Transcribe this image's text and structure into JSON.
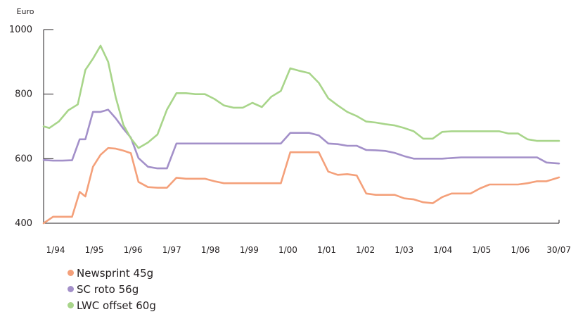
{
  "chart_data": {
    "type": "line",
    "unit_label": "Euro",
    "ylim": [
      400,
      1000
    ],
    "y_ticks": [
      "1000",
      "800",
      "600",
      "400"
    ],
    "y_tick_values": [
      1000,
      800,
      600,
      400
    ],
    "x_tick_labels": [
      "1/94",
      "1/95",
      "1/96",
      "1/97",
      "1/98",
      "1/99",
      "1/00",
      "1/01",
      "1/02",
      "1/03",
      "1/04",
      "1/05",
      "1/06",
      "30/07"
    ],
    "x_range": [
      1994.0,
      2007.58
    ],
    "grid": false,
    "legend_position": "bottom-left",
    "series": [
      {
        "name": "Newsprint 45g",
        "color": "#f4a07a",
        "x": [
          1994.0,
          1994.25,
          1994.5,
          1994.75,
          1994.95,
          1995.1,
          1995.3,
          1995.5,
          1995.7,
          1995.9,
          1996.1,
          1996.3,
          1996.5,
          1996.75,
          1997.0,
          1997.25,
          1997.5,
          1997.75,
          1998.0,
          1998.25,
          1998.5,
          1998.75,
          1999.0,
          1999.25,
          1999.5,
          1999.75,
          2000.0,
          2000.25,
          2000.5,
          2000.75,
          2001.0,
          2001.25,
          2001.5,
          2001.75,
          2002.0,
          2002.25,
          2002.5,
          2002.75,
          2003.0,
          2003.25,
          2003.5,
          2003.75,
          2004.0,
          2004.25,
          2004.5,
          2004.75,
          2005.0,
          2005.25,
          2005.5,
          2005.75,
          2006.0,
          2006.25,
          2006.5,
          2006.75,
          2007.0,
          2007.25,
          2007.58
        ],
        "values": [
          400,
          420,
          420,
          420,
          497,
          483,
          575,
          612,
          633,
          631,
          625,
          617,
          528,
          512,
          510,
          510,
          541,
          538,
          538,
          538,
          530,
          524,
          524,
          524,
          524,
          524,
          524,
          524,
          620,
          620,
          620,
          620,
          560,
          550,
          552,
          548,
          492,
          488,
          488,
          488,
          477,
          474,
          465,
          462,
          481,
          492,
          492,
          492,
          508,
          520,
          520,
          520,
          520,
          524,
          530,
          530,
          542
        ]
      },
      {
        "name": "SC roto 56g",
        "color": "#a390c9",
        "x": [
          1994.0,
          1994.25,
          1994.5,
          1994.75,
          1994.95,
          1995.1,
          1995.3,
          1995.5,
          1995.7,
          1995.9,
          1996.1,
          1996.3,
          1996.5,
          1996.75,
          1997.0,
          1997.25,
          1997.5,
          1997.75,
          1998.0,
          1998.25,
          1998.5,
          1998.75,
          1999.0,
          1999.25,
          1999.5,
          1999.75,
          2000.0,
          2000.25,
          2000.5,
          2000.75,
          2001.0,
          2001.25,
          2001.5,
          2001.75,
          2002.0,
          2002.25,
          2002.5,
          2002.75,
          2003.0,
          2003.25,
          2003.5,
          2003.75,
          2004.0,
          2004.25,
          2004.5,
          2004.75,
          2005.0,
          2005.25,
          2005.5,
          2005.75,
          2006.0,
          2006.25,
          2006.5,
          2006.75,
          2007.0,
          2007.25,
          2007.58
        ],
        "values": [
          596,
          594,
          594,
          595,
          660,
          660,
          745,
          745,
          752,
          725,
          693,
          665,
          602,
          575,
          570,
          570,
          647,
          647,
          647,
          647,
          647,
          647,
          647,
          647,
          647,
          647,
          647,
          647,
          680,
          680,
          680,
          672,
          647,
          645,
          640,
          640,
          627,
          626,
          624,
          618,
          608,
          600,
          600,
          600,
          600,
          602,
          604,
          604,
          604,
          604,
          604,
          604,
          604,
          604,
          604,
          588,
          585
        ]
      },
      {
        "name": "LWC offset 60g",
        "color": "#a8d58a",
        "x": [
          1994.0,
          1994.15,
          1994.4,
          1994.65,
          1994.9,
          1995.1,
          1995.3,
          1995.5,
          1995.7,
          1995.9,
          1996.1,
          1996.3,
          1996.5,
          1996.75,
          1997.0,
          1997.25,
          1997.5,
          1997.75,
          1998.0,
          1998.25,
          1998.5,
          1998.75,
          1999.0,
          1999.25,
          1999.5,
          1999.75,
          2000.0,
          2000.25,
          2000.5,
          2000.75,
          2001.0,
          2001.25,
          2001.5,
          2001.75,
          2002.0,
          2002.25,
          2002.5,
          2002.75,
          2003.0,
          2003.25,
          2003.5,
          2003.75,
          2004.0,
          2004.25,
          2004.5,
          2004.75,
          2005.0,
          2005.25,
          2005.5,
          2005.75,
          2006.0,
          2006.25,
          2006.5,
          2006.75,
          2007.0,
          2007.25,
          2007.58
        ],
        "values": [
          700,
          695,
          715,
          750,
          768,
          875,
          910,
          950,
          900,
          790,
          705,
          663,
          633,
          650,
          675,
          752,
          803,
          803,
          800,
          800,
          785,
          765,
          758,
          758,
          773,
          760,
          792,
          810,
          880,
          872,
          865,
          835,
          787,
          765,
          745,
          732,
          715,
          712,
          707,
          703,
          695,
          685,
          662,
          662,
          683,
          685,
          685,
          685,
          685,
          685,
          685,
          678,
          678,
          660,
          655,
          655,
          655
        ]
      }
    ]
  }
}
